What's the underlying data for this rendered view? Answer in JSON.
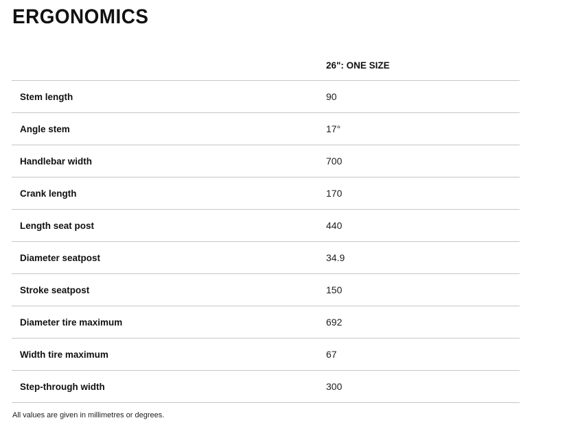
{
  "page": {
    "title": "ERGONOMICS",
    "footnote": "All values are given in millimetres or degrees."
  },
  "table": {
    "size_header": "26\": ONE SIZE",
    "rows": [
      {
        "label": "Stem length",
        "value": "90"
      },
      {
        "label": "Angle stem",
        "value": "17°"
      },
      {
        "label": "Handlebar width",
        "value": "700"
      },
      {
        "label": "Crank length",
        "value": "170"
      },
      {
        "label": "Length seat post",
        "value": "440"
      },
      {
        "label": "Diameter seatpost",
        "value": "34.9"
      },
      {
        "label": "Stroke seatpost",
        "value": "150"
      },
      {
        "label": "Diameter tire maximum",
        "value": "692"
      },
      {
        "label": "Width tire maximum",
        "value": "67"
      },
      {
        "label": "Step-through width",
        "value": "300"
      }
    ]
  },
  "colors": {
    "text": "#111111",
    "value_text": "#1c1c1c",
    "divider": "#c6c6c6"
  }
}
